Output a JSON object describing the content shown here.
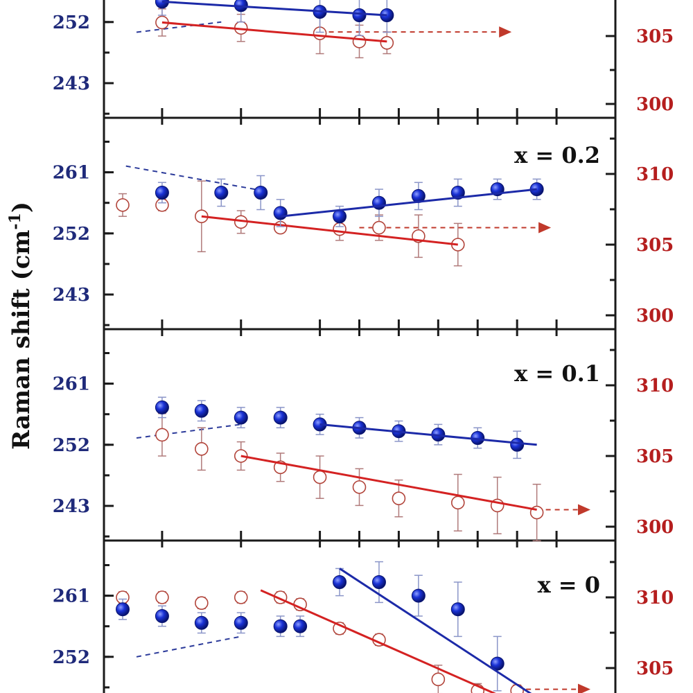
{
  "chart_data": {
    "type": "scatter",
    "ylabel": "Raman shift (cm",
    "ylabel_superscript": "-1",
    "ylabel_suffix": ")",
    "left_axis_color": "#1f2a7a",
    "right_axis_color": "#b51e1e",
    "filled_series_color": "#1428c8",
    "open_series_color": "#c0392b",
    "panels": [
      {
        "label": "",
        "left_ticks": [
          "243",
          "252"
        ],
        "right_ticks": [
          "300",
          "305"
        ],
        "filled": [
          [
            1.0,
            255.0,
            2.0
          ],
          [
            3.0,
            254.5,
            2.5
          ],
          [
            5.0,
            253.5,
            3.0
          ],
          [
            6.0,
            253.0,
            3.0
          ],
          [
            6.7,
            253.0,
            2.5
          ]
        ],
        "open": [
          [
            1.0,
            306.0,
            1.0
          ],
          [
            3.0,
            305.6,
            1.0
          ],
          [
            5.0,
            305.2,
            1.5
          ],
          [
            6.0,
            304.6,
            1.2
          ],
          [
            6.7,
            304.5,
            0.8
          ]
        ],
        "fit_filled": [
          [
            1.0,
            255.0
          ],
          [
            6.7,
            253.0
          ]
        ],
        "fit_open": [
          [
            1.0,
            306.0
          ],
          [
            6.7,
            304.6
          ]
        ],
        "arrow_filled": [
          [
            0.0,
            250.5
          ],
          [
            2.5,
            252.0
          ]
        ],
        "arrow_open": [
          [
            5.0,
            305.3
          ],
          [
            10.0,
            305.3
          ]
        ]
      },
      {
        "label": "x = 0.2",
        "left_ticks": [
          "243",
          "252",
          "261"
        ],
        "right_ticks": [
          "300",
          "305",
          "310"
        ],
        "filled": [
          [
            1.0,
            258.0,
            1.5
          ],
          [
            2.5,
            258.0,
            2.0
          ],
          [
            3.5,
            258.0,
            2.5
          ],
          [
            4.0,
            255.0,
            2.0
          ],
          [
            5.5,
            254.5,
            1.5
          ],
          [
            6.5,
            256.5,
            2.0
          ],
          [
            7.5,
            257.5,
            2.0
          ],
          [
            8.5,
            258.0,
            2.0
          ],
          [
            9.5,
            258.5,
            1.5
          ],
          [
            10.5,
            258.5,
            1.5
          ]
        ],
        "open": [
          [
            0.0,
            307.8,
            0.8
          ],
          [
            1.0,
            307.8,
            0.4
          ],
          [
            2.0,
            307.0,
            2.5
          ],
          [
            3.0,
            306.6,
            0.8
          ],
          [
            4.0,
            306.2,
            0.3
          ],
          [
            5.5,
            306.1,
            0.8
          ],
          [
            6.5,
            306.2,
            0.9
          ],
          [
            7.5,
            305.6,
            1.5
          ],
          [
            8.5,
            305.0,
            1.5
          ]
        ],
        "fit_filled": [
          [
            4.0,
            254.5
          ],
          [
            10.5,
            258.5
          ]
        ],
        "fit_open": [
          [
            2.0,
            307.0
          ],
          [
            8.5,
            305.0
          ]
        ],
        "arrow_filled": [
          [
            3.0,
            258.5
          ],
          [
            0.0,
            262.0
          ]
        ],
        "arrow_open": [
          [
            6.0,
            306.2
          ],
          [
            11.0,
            306.2
          ]
        ]
      },
      {
        "label": "x = 0.1",
        "left_ticks": [
          "243",
          "252",
          "261"
        ],
        "right_ticks": [
          "300",
          "305",
          "310"
        ],
        "filled": [
          [
            1.0,
            257.5,
            1.5
          ],
          [
            2.0,
            257.0,
            1.5
          ],
          [
            3.0,
            256.0,
            1.5
          ],
          [
            4.0,
            256.0,
            1.5
          ],
          [
            5.0,
            255.0,
            1.5
          ],
          [
            6.0,
            254.5,
            1.5
          ],
          [
            7.0,
            254.0,
            1.5
          ],
          [
            8.0,
            253.5,
            1.5
          ],
          [
            9.0,
            253.0,
            1.5
          ],
          [
            10.0,
            252.0,
            2.0
          ]
        ],
        "open": [
          [
            1.0,
            306.5,
            1.5
          ],
          [
            2.0,
            305.5,
            1.5
          ],
          [
            3.0,
            305.0,
            1.0
          ],
          [
            4.0,
            304.2,
            1.0
          ],
          [
            5.0,
            303.5,
            1.5
          ],
          [
            6.0,
            302.8,
            1.3
          ],
          [
            7.0,
            302.0,
            1.3
          ],
          [
            8.5,
            301.7,
            2.0
          ],
          [
            9.5,
            301.5,
            2.0
          ],
          [
            10.5,
            301.0,
            2.0
          ]
        ],
        "fit_filled": [
          [
            5.0,
            255.0
          ],
          [
            10.5,
            252.0
          ]
        ],
        "fit_open": [
          [
            3.0,
            305.0
          ],
          [
            10.5,
            301.2
          ]
        ],
        "arrow_filled": [
          [
            0.0,
            253.0
          ],
          [
            3.0,
            255.0
          ]
        ],
        "arrow_open": [
          [
            10.5,
            301.2
          ],
          [
            12.0,
            301.2
          ]
        ]
      },
      {
        "label": "x = 0",
        "left_ticks": [
          "252",
          "261"
        ],
        "right_ticks": [
          "305",
          "310"
        ],
        "filled": [
          [
            0.0,
            259.0,
            1.5
          ],
          [
            1.0,
            258.0,
            1.5
          ],
          [
            2.0,
            257.0,
            1.5
          ],
          [
            3.0,
            257.0,
            1.5
          ],
          [
            4.0,
            256.5,
            1.5
          ],
          [
            4.5,
            256.5,
            1.5
          ],
          [
            5.5,
            263.0,
            2.0
          ],
          [
            6.5,
            263.0,
            3.0
          ],
          [
            7.5,
            261.0,
            3.0
          ],
          [
            8.5,
            259.0,
            4.0
          ],
          [
            9.5,
            251.0,
            4.0
          ]
        ],
        "open": [
          [
            0.0,
            310.0,
            0.4
          ],
          [
            1.0,
            310.0,
            0.4
          ],
          [
            2.0,
            309.6,
            0.4
          ],
          [
            3.0,
            310.0,
            0.4
          ],
          [
            4.0,
            310.0,
            0.4
          ],
          [
            4.5,
            309.5,
            0.4
          ],
          [
            5.5,
            307.8,
            0.4
          ],
          [
            6.5,
            307.0,
            0.4
          ],
          [
            8.0,
            304.2,
            1.0
          ],
          [
            9.0,
            303.4,
            0.5
          ],
          [
            10.0,
            303.4,
            0.4
          ]
        ],
        "fit_filled": [
          [
            5.5,
            265.0
          ],
          [
            10.5,
            246.0
          ]
        ],
        "fit_open": [
          [
            3.5,
            310.5
          ],
          [
            10.0,
            302.5
          ]
        ],
        "arrow_filled": [
          [
            0.0,
            252.0
          ],
          [
            3.0,
            255.0
          ]
        ],
        "arrow_open": [
          [
            10.0,
            303.5
          ],
          [
            12.0,
            303.5
          ]
        ]
      }
    ]
  }
}
